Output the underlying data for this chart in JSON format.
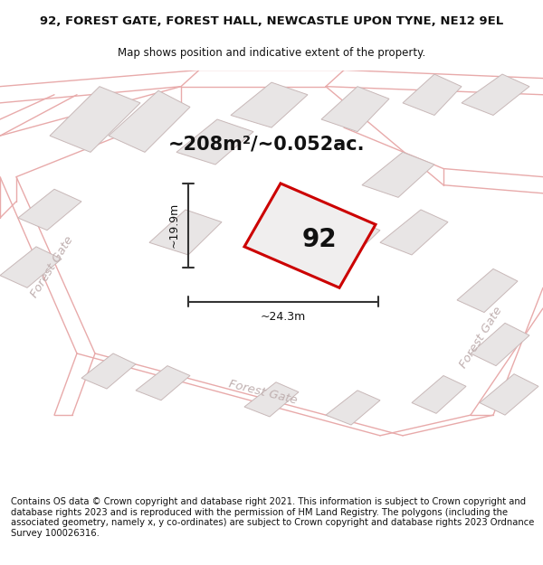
{
  "title_line1": "92, FOREST GATE, FOREST HALL, NEWCASTLE UPON TYNE, NE12 9EL",
  "title_line2": "Map shows position and indicative extent of the property.",
  "area_label": "~208m²/~0.052ac.",
  "property_number": "92",
  "dim_width": "~24.3m",
  "dim_height": "~19.9m",
  "footer_text": "Contains OS data © Crown copyright and database right 2021. This information is subject to Crown copyright and database rights 2023 and is reproduced with the permission of HM Land Registry. The polygons (including the associated geometry, namely x, y co-ordinates) are subject to Crown copyright and database rights 2023 Ordnance Survey 100026316.",
  "map_bg": "#f7f5f5",
  "building_fill": "#e8e5e5",
  "building_edge": "#c8b8b8",
  "property_fill": "#f0eeee",
  "property_edge_color": "#cc0000",
  "road_line_color": "#e8aaaa",
  "road_label_color": "#c0b0b0",
  "dim_line_color": "#333333",
  "title_fontsize": 9.5,
  "subtitle_fontsize": 8.5,
  "area_fontsize": 15,
  "number_fontsize": 20,
  "footer_fontsize": 7.2,
  "road_label_fontsize": 9.5
}
